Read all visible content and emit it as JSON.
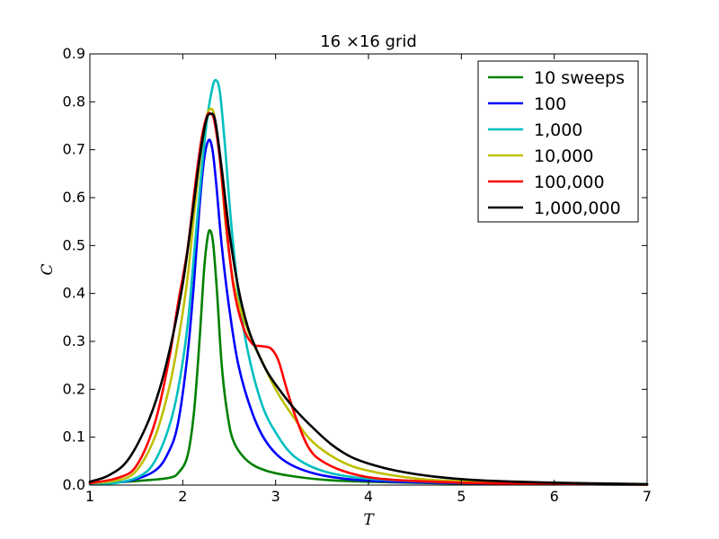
{
  "chart_data": {
    "type": "line",
    "title": "16 ×16 grid",
    "xlabel": "T",
    "ylabel": "C",
    "xlim": [
      1,
      7
    ],
    "ylim": [
      0,
      0.9
    ],
    "x_ticks": [
      "1",
      "2",
      "3",
      "4",
      "5",
      "6",
      "7"
    ],
    "y_ticks": [
      "0.0",
      "0.1",
      "0.2",
      "0.3",
      "0.4",
      "0.5",
      "0.6",
      "0.7",
      "0.8",
      "0.9"
    ],
    "grid": false,
    "legend_position": "top-right",
    "series": [
      {
        "name": "10 sweeps",
        "color": "#008000",
        "points": [
          [
            1.0,
            0.004
          ],
          [
            1.3,
            0.006
          ],
          [
            1.6,
            0.01
          ],
          [
            1.85,
            0.015
          ],
          [
            1.95,
            0.025
          ],
          [
            2.05,
            0.06
          ],
          [
            2.12,
            0.15
          ],
          [
            2.18,
            0.3
          ],
          [
            2.23,
            0.45
          ],
          [
            2.27,
            0.52
          ],
          [
            2.3,
            0.53
          ],
          [
            2.33,
            0.5
          ],
          [
            2.37,
            0.4
          ],
          [
            2.42,
            0.25
          ],
          [
            2.48,
            0.15
          ],
          [
            2.55,
            0.09
          ],
          [
            2.7,
            0.05
          ],
          [
            2.9,
            0.03
          ],
          [
            3.2,
            0.018
          ],
          [
            3.6,
            0.01
          ],
          [
            4.2,
            0.006
          ],
          [
            5.0,
            0.003
          ],
          [
            6.0,
            0.002
          ],
          [
            7.0,
            0.001
          ]
        ]
      },
      {
        "name": "100",
        "color": "#0000ff",
        "points": [
          [
            1.0,
            0.003
          ],
          [
            1.4,
            0.008
          ],
          [
            1.7,
            0.03
          ],
          [
            1.85,
            0.07
          ],
          [
            1.95,
            0.13
          ],
          [
            2.05,
            0.27
          ],
          [
            2.12,
            0.42
          ],
          [
            2.18,
            0.58
          ],
          [
            2.23,
            0.68
          ],
          [
            2.28,
            0.72
          ],
          [
            2.32,
            0.7
          ],
          [
            2.36,
            0.63
          ],
          [
            2.42,
            0.5
          ],
          [
            2.5,
            0.37
          ],
          [
            2.6,
            0.25
          ],
          [
            2.75,
            0.15
          ],
          [
            2.9,
            0.09
          ],
          [
            3.1,
            0.05
          ],
          [
            3.4,
            0.025
          ],
          [
            3.8,
            0.012
          ],
          [
            4.3,
            0.007
          ],
          [
            5.0,
            0.004
          ],
          [
            6.0,
            0.002
          ],
          [
            7.0,
            0.001
          ]
        ]
      },
      {
        "name": "1,000",
        "color": "#00bfbf",
        "points": [
          [
            1.0,
            0.002
          ],
          [
            1.3,
            0.005
          ],
          [
            1.55,
            0.02
          ],
          [
            1.7,
            0.05
          ],
          [
            1.85,
            0.12
          ],
          [
            1.95,
            0.2
          ],
          [
            2.05,
            0.33
          ],
          [
            2.13,
            0.5
          ],
          [
            2.2,
            0.65
          ],
          [
            2.26,
            0.76
          ],
          [
            2.32,
            0.83
          ],
          [
            2.36,
            0.845
          ],
          [
            2.4,
            0.82
          ],
          [
            2.45,
            0.72
          ],
          [
            2.52,
            0.55
          ],
          [
            2.6,
            0.4
          ],
          [
            2.7,
            0.28
          ],
          [
            2.85,
            0.17
          ],
          [
            3.0,
            0.11
          ],
          [
            3.2,
            0.06
          ],
          [
            3.5,
            0.03
          ],
          [
            3.9,
            0.015
          ],
          [
            4.5,
            0.008
          ],
          [
            5.2,
            0.004
          ],
          [
            6.0,
            0.002
          ],
          [
            7.0,
            0.001
          ]
        ]
      },
      {
        "name": "10,000",
        "color": "#bfbf00",
        "points": [
          [
            1.0,
            0.004
          ],
          [
            1.3,
            0.01
          ],
          [
            1.5,
            0.03
          ],
          [
            1.7,
            0.1
          ],
          [
            1.85,
            0.2
          ],
          [
            1.95,
            0.3
          ],
          [
            2.05,
            0.43
          ],
          [
            2.13,
            0.58
          ],
          [
            2.2,
            0.7
          ],
          [
            2.26,
            0.77
          ],
          [
            2.3,
            0.785
          ],
          [
            2.34,
            0.77
          ],
          [
            2.4,
            0.68
          ],
          [
            2.47,
            0.53
          ],
          [
            2.55,
            0.42
          ],
          [
            2.65,
            0.35
          ],
          [
            2.75,
            0.3
          ],
          [
            2.85,
            0.26
          ],
          [
            3.0,
            0.2
          ],
          [
            3.2,
            0.14
          ],
          [
            3.4,
            0.09
          ],
          [
            3.7,
            0.05
          ],
          [
            4.0,
            0.03
          ],
          [
            4.5,
            0.014
          ],
          [
            5.0,
            0.008
          ],
          [
            6.0,
            0.003
          ],
          [
            7.0,
            0.001
          ]
        ]
      },
      {
        "name": "100,000",
        "color": "#ff0000",
        "points": [
          [
            1.0,
            0.004
          ],
          [
            1.3,
            0.015
          ],
          [
            1.5,
            0.04
          ],
          [
            1.7,
            0.13
          ],
          [
            1.85,
            0.26
          ],
          [
            1.95,
            0.38
          ],
          [
            2.05,
            0.49
          ],
          [
            2.13,
            0.62
          ],
          [
            2.2,
            0.72
          ],
          [
            2.26,
            0.77
          ],
          [
            2.3,
            0.775
          ],
          [
            2.34,
            0.76
          ],
          [
            2.4,
            0.68
          ],
          [
            2.47,
            0.54
          ],
          [
            2.55,
            0.41
          ],
          [
            2.65,
            0.33
          ],
          [
            2.75,
            0.295
          ],
          [
            2.85,
            0.29
          ],
          [
            2.95,
            0.285
          ],
          [
            3.03,
            0.26
          ],
          [
            3.12,
            0.2
          ],
          [
            3.22,
            0.14
          ],
          [
            3.35,
            0.08
          ],
          [
            3.5,
            0.05
          ],
          [
            3.8,
            0.025
          ],
          [
            4.2,
            0.012
          ],
          [
            5.0,
            0.005
          ],
          [
            6.0,
            0.002
          ],
          [
            7.0,
            0.001
          ]
        ]
      },
      {
        "name": "1,000,000",
        "color": "#000000",
        "points": [
          [
            1.0,
            0.007
          ],
          [
            1.2,
            0.02
          ],
          [
            1.4,
            0.05
          ],
          [
            1.6,
            0.12
          ],
          [
            1.75,
            0.2
          ],
          [
            1.88,
            0.3
          ],
          [
            2.0,
            0.42
          ],
          [
            2.1,
            0.56
          ],
          [
            2.18,
            0.68
          ],
          [
            2.25,
            0.76
          ],
          [
            2.3,
            0.775
          ],
          [
            2.35,
            0.76
          ],
          [
            2.42,
            0.66
          ],
          [
            2.5,
            0.53
          ],
          [
            2.6,
            0.41
          ],
          [
            2.7,
            0.33
          ],
          [
            2.8,
            0.28
          ],
          [
            2.9,
            0.24
          ],
          [
            3.0,
            0.21
          ],
          [
            3.2,
            0.16
          ],
          [
            3.4,
            0.12
          ],
          [
            3.6,
            0.085
          ],
          [
            3.8,
            0.06
          ],
          [
            4.0,
            0.045
          ],
          [
            4.3,
            0.03
          ],
          [
            4.7,
            0.018
          ],
          [
            5.2,
            0.01
          ],
          [
            6.0,
            0.005
          ],
          [
            7.0,
            0.002
          ]
        ]
      }
    ]
  }
}
